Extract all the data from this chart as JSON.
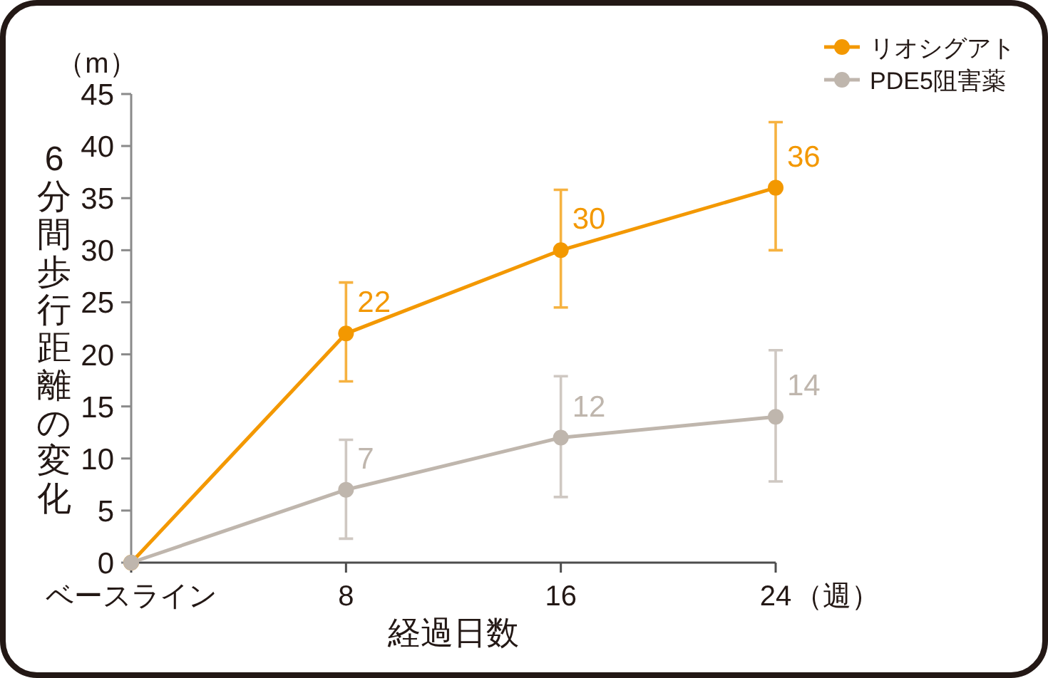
{
  "chart_data": {
    "type": "line",
    "ylabel": "6分間歩行距離の変化",
    "xlabel": "経過日数",
    "annotations": [
      "（m）",
      "（週）"
    ],
    "x": [
      0,
      8,
      16,
      24
    ],
    "xlim": [
      0,
      24
    ],
    "xticks": [
      {
        "value": 0,
        "label": "ベースライン"
      },
      8,
      16,
      24
    ],
    "ylim": [
      0,
      45
    ],
    "yticks": [
      0,
      5,
      10,
      15,
      20,
      25,
      30,
      35,
      40,
      45
    ],
    "grid": false,
    "legend": "top right",
    "marker": "circle",
    "line_style": "solid",
    "series": [
      {
        "name": "リオシグアト",
        "color": "#f39800",
        "values": [
          0,
          22,
          30,
          36
        ],
        "errors": [
          null,
          [
            17.4,
            26.9
          ],
          [
            24.5,
            35.8
          ],
          [
            30,
            42.3
          ]
        ],
        "value_labels": [
          null,
          "22",
          "30",
          "36"
        ]
      },
      {
        "name": "PDE5阻害薬",
        "color": "#bfb6ad",
        "values": [
          0,
          7,
          12,
          14
        ],
        "errors": [
          null,
          [
            2.3,
            11.8
          ],
          [
            6.3,
            17.9
          ],
          [
            7.8,
            20.4
          ]
        ],
        "value_labels": [
          null,
          "7",
          "12",
          "14"
        ]
      }
    ]
  }
}
